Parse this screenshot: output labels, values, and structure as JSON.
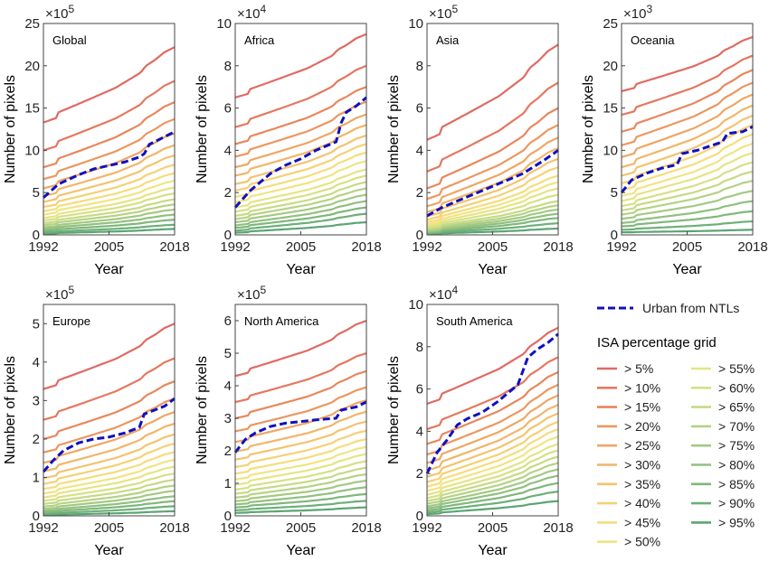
{
  "chart_data": [
    {
      "type": "line",
      "title": "Global",
      "exponent_base": "×10",
      "exponent": "5",
      "ylim": [
        0,
        25
      ],
      "yticks": [
        0,
        5,
        10,
        15,
        20,
        25
      ],
      "xlim": [
        1992,
        2018
      ],
      "xticks": [
        "1992",
        "2005",
        "2018"
      ],
      "xlabel": "Year",
      "ylabel": "Number of pixels",
      "isa_start": [
        13.3,
        10.0,
        8.0,
        6.6,
        5.5,
        4.6,
        3.9,
        3.3,
        2.8,
        2.4,
        2.0,
        1.7,
        1.4,
        1.15,
        0.9,
        0.7,
        0.5,
        0.3,
        0.15
      ],
      "isa_end": [
        22.2,
        18.2,
        15.7,
        13.7,
        12.0,
        10.6,
        9.4,
        8.3,
        7.3,
        6.4,
        5.6,
        4.9,
        4.2,
        3.6,
        3.0,
        2.4,
        1.8,
        1.2,
        0.7
      ],
      "urban_ntl": [
        [
          1992,
          4.4
        ],
        [
          1995,
          6.0
        ],
        [
          1999,
          7.1
        ],
        [
          2002,
          7.8
        ],
        [
          2005,
          8.2
        ],
        [
          2008,
          8.6
        ],
        [
          2011,
          9.2
        ],
        [
          2012,
          9.6
        ],
        [
          2013,
          10.7
        ],
        [
          2015,
          11.3
        ],
        [
          2018,
          12.2
        ]
      ]
    },
    {
      "type": "line",
      "title": "Africa",
      "exponent_base": "×10",
      "exponent": "4",
      "ylim": [
        0,
        10
      ],
      "yticks": [
        0,
        2,
        4,
        6,
        8,
        10
      ],
      "xlim": [
        1992,
        2018
      ],
      "xticks": [
        "1992",
        "2005",
        "2018"
      ],
      "xlabel": "Year",
      "ylabel": "Number of pixels",
      "isa_start": [
        6.5,
        5.1,
        4.3,
        3.7,
        3.2,
        2.8,
        2.4,
        2.1,
        1.8,
        1.55,
        1.3,
        1.1,
        0.9,
        0.75,
        0.6,
        0.45,
        0.33,
        0.2,
        0.1
      ],
      "isa_end": [
        9.5,
        8.0,
        7.0,
        6.3,
        5.7,
        5.2,
        4.7,
        4.3,
        3.9,
        3.5,
        3.1,
        2.8,
        2.5,
        2.2,
        1.9,
        1.6,
        1.3,
        1.0,
        0.6
      ],
      "urban_ntl": [
        [
          1992,
          1.3
        ],
        [
          1995,
          2.1
        ],
        [
          1999,
          2.9
        ],
        [
          2002,
          3.3
        ],
        [
          2005,
          3.6
        ],
        [
          2008,
          4.0
        ],
        [
          2012,
          4.4
        ],
        [
          2013,
          5.3
        ],
        [
          2014,
          5.8
        ],
        [
          2016,
          6.1
        ],
        [
          2018,
          6.5
        ]
      ]
    },
    {
      "type": "line",
      "title": "Asia",
      "exponent_base": "×10",
      "exponent": "5",
      "ylim": [
        0,
        10
      ],
      "yticks": [
        0,
        2,
        4,
        6,
        8,
        10
      ],
      "xlim": [
        1992,
        2018
      ],
      "xticks": [
        "1992",
        "2005",
        "2018"
      ],
      "xlabel": "Year",
      "ylabel": "Number of pixels",
      "isa_start": [
        4.5,
        3.0,
        2.2,
        1.7,
        1.35,
        1.08,
        0.88,
        0.72,
        0.6,
        0.5,
        0.42,
        0.35,
        0.29,
        0.23,
        0.18,
        0.14,
        0.1,
        0.07,
        0.04
      ],
      "isa_end": [
        9.0,
        7.2,
        6.0,
        5.2,
        4.6,
        4.1,
        3.6,
        3.2,
        2.8,
        2.5,
        2.2,
        1.9,
        1.6,
        1.4,
        1.2,
        1.0,
        0.8,
        0.55,
        0.3
      ],
      "urban_ntl": [
        [
          1992,
          0.9
        ],
        [
          1995,
          1.3
        ],
        [
          1999,
          1.7
        ],
        [
          2002,
          2.0
        ],
        [
          2005,
          2.3
        ],
        [
          2008,
          2.6
        ],
        [
          2011,
          2.9
        ],
        [
          2013,
          3.2
        ],
        [
          2015,
          3.5
        ],
        [
          2018,
          4.0
        ]
      ]
    },
    {
      "type": "line",
      "title": "Oceania",
      "exponent_base": "×10",
      "exponent": "3",
      "ylim": [
        0,
        25
      ],
      "yticks": [
        0,
        5,
        10,
        15,
        20,
        25
      ],
      "xlim": [
        1992,
        2018
      ],
      "xticks": [
        "1992",
        "2005",
        "2018"
      ],
      "xlabel": "Year",
      "ylabel": "Number of pixels",
      "isa_start": [
        17.0,
        14.2,
        12.2,
        10.6,
        9.2,
        8.0,
        7.0,
        6.1,
        5.3,
        4.6,
        4.0,
        3.4,
        2.9,
        2.4,
        1.9,
        1.4,
        1.0,
        0.6,
        0.3
      ],
      "isa_end": [
        23.4,
        21.2,
        19.5,
        18.0,
        16.6,
        15.3,
        14.1,
        13.0,
        11.9,
        10.8,
        9.7,
        8.6,
        7.5,
        6.4,
        5.2,
        4.0,
        2.8,
        1.6,
        0.6
      ],
      "urban_ntl": [
        [
          1992,
          5.0
        ],
        [
          1994,
          6.5
        ],
        [
          1997,
          7.3
        ],
        [
          2000,
          7.9
        ],
        [
          2003,
          8.3
        ],
        [
          2004,
          9.6
        ],
        [
          2007,
          10.0
        ],
        [
          2010,
          10.6
        ],
        [
          2012,
          11.0
        ],
        [
          2013,
          12.0
        ],
        [
          2016,
          12.2
        ],
        [
          2018,
          12.8
        ]
      ]
    },
    {
      "type": "line",
      "title": "Europe",
      "exponent_base": "×10",
      "exponent": "5",
      "ylim": [
        0,
        5.5
      ],
      "yticks": [
        0,
        1,
        2,
        3,
        4,
        5
      ],
      "xlim": [
        1992,
        2018
      ],
      "xticks": [
        "1992",
        "2005",
        "2018"
      ],
      "xlabel": "Year",
      "ylabel": "Number of pixels",
      "isa_start": [
        3.3,
        2.5,
        2.0,
        1.65,
        1.38,
        1.16,
        0.98,
        0.83,
        0.7,
        0.58,
        0.48,
        0.39,
        0.31,
        0.24,
        0.18,
        0.13,
        0.09,
        0.05,
        0.02
      ],
      "isa_end": [
        5.0,
        4.1,
        3.5,
        3.05,
        2.7,
        2.4,
        2.12,
        1.88,
        1.66,
        1.46,
        1.28,
        1.1,
        0.94,
        0.79,
        0.65,
        0.51,
        0.38,
        0.25,
        0.12
      ],
      "urban_ntl": [
        [
          1992,
          1.15
        ],
        [
          1994,
          1.45
        ],
        [
          1996,
          1.7
        ],
        [
          1999,
          1.9
        ],
        [
          2002,
          2.0
        ],
        [
          2005,
          2.05
        ],
        [
          2008,
          2.15
        ],
        [
          2011,
          2.3
        ],
        [
          2012,
          2.65
        ],
        [
          2014,
          2.75
        ],
        [
          2016,
          2.85
        ],
        [
          2018,
          3.05
        ]
      ]
    },
    {
      "type": "line",
      "title": "North America",
      "exponent_base": "×10",
      "exponent": "5",
      "ylim": [
        0,
        6.5
      ],
      "yticks": [
        0,
        1,
        2,
        3,
        4,
        5,
        6
      ],
      "xlim": [
        1992,
        2018
      ],
      "xticks": [
        "1992",
        "2005",
        "2018"
      ],
      "xlabel": "Year",
      "ylabel": "Number of pixels",
      "isa_start": [
        4.3,
        3.5,
        3.0,
        2.6,
        2.27,
        1.98,
        1.73,
        1.5,
        1.3,
        1.12,
        0.96,
        0.81,
        0.68,
        0.56,
        0.45,
        0.35,
        0.26,
        0.17,
        0.09
      ],
      "isa_end": [
        6.0,
        5.0,
        4.45,
        3.95,
        3.55,
        3.2,
        2.9,
        2.62,
        2.36,
        2.12,
        1.9,
        1.68,
        1.48,
        1.28,
        1.08,
        0.88,
        0.67,
        0.46,
        0.26
      ],
      "urban_ntl": [
        [
          1992,
          1.95
        ],
        [
          1994,
          2.35
        ],
        [
          1996,
          2.55
        ],
        [
          1999,
          2.75
        ],
        [
          2002,
          2.85
        ],
        [
          2005,
          2.9
        ],
        [
          2008,
          2.95
        ],
        [
          2012,
          3.0
        ],
        [
          2013,
          3.25
        ],
        [
          2016,
          3.35
        ],
        [
          2018,
          3.5
        ]
      ]
    },
    {
      "type": "line",
      "title": "South America",
      "exponent_base": "×10",
      "exponent": "4",
      "ylim": [
        0,
        10
      ],
      "yticks": [
        0,
        2,
        4,
        6,
        8,
        10
      ],
      "xlim": [
        1992,
        2018
      ],
      "xticks": [
        "1992",
        "2005",
        "2018"
      ],
      "xlabel": "Year",
      "ylabel": "Number of pixels",
      "isa_start": [
        5.3,
        4.1,
        3.4,
        2.9,
        2.5,
        2.15,
        1.85,
        1.6,
        1.38,
        1.18,
        1.0,
        0.84,
        0.7,
        0.57,
        0.45,
        0.35,
        0.25,
        0.16,
        0.08
      ],
      "isa_end": [
        8.9,
        7.5,
        6.8,
        6.2,
        5.7,
        5.25,
        4.85,
        4.45,
        4.1,
        3.75,
        3.4,
        3.1,
        2.8,
        2.5,
        2.2,
        1.9,
        1.55,
        1.15,
        0.7
      ],
      "urban_ntl": [
        [
          1992,
          2.0
        ],
        [
          1994,
          3.0
        ],
        [
          1996,
          3.6
        ],
        [
          1998,
          4.3
        ],
        [
          2000,
          4.6
        ],
        [
          2003,
          4.9
        ],
        [
          2006,
          5.4
        ],
        [
          2010,
          6.2
        ],
        [
          2012,
          7.5
        ],
        [
          2014,
          7.9
        ],
        [
          2016,
          8.2
        ],
        [
          2018,
          8.6
        ]
      ]
    }
  ],
  "legend": {
    "urban_label": "Urban from NTLs",
    "urban_color": "#1010c0",
    "isa_title": "ISA percentage grid",
    "isa_labels": [
      "> 5%",
      "> 10%",
      "> 15%",
      "> 20%",
      "> 25%",
      "> 30%",
      "> 35%",
      "> 40%",
      "> 45%",
      "> 50%",
      "> 55%",
      "> 60%",
      "> 65%",
      "> 70%",
      "> 75%",
      "> 80%",
      "> 85%",
      "> 90%",
      "> 95%"
    ],
    "isa_colors": [
      "#e06a62",
      "#e4785f",
      "#e8875d",
      "#ec975f",
      "#efa663",
      "#f2b568",
      "#f4c36e",
      "#f5d174",
      "#f4dd7b",
      "#f1e482",
      "#e5e484",
      "#d6e085",
      "#c6da85",
      "#b5d284",
      "#a3c982",
      "#91c07f",
      "#7fb77b",
      "#6daf77",
      "#5aa573"
    ]
  }
}
